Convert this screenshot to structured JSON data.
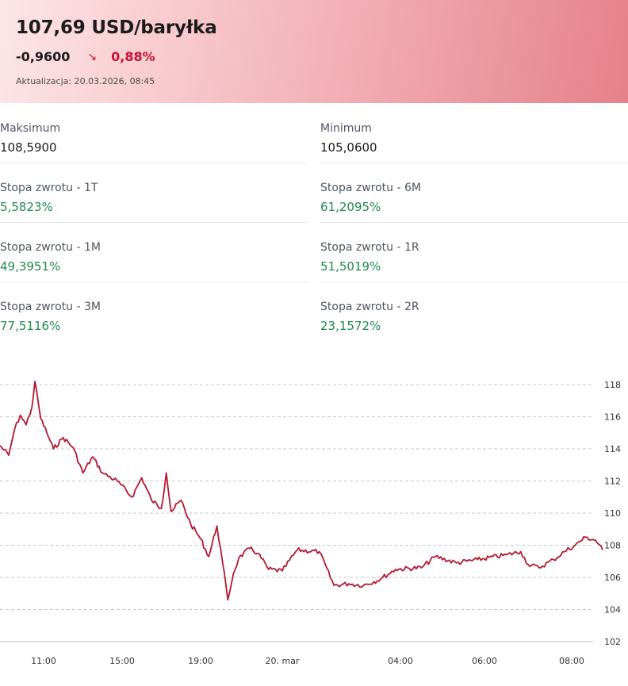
{
  "header": {
    "price": "107,69 USD/baryłka",
    "change_abs": "-0,9600",
    "change_arrow": "↘",
    "change_pct": "0,88%",
    "updated": "Aktualizacja: 20.03.2026, 08:45"
  },
  "stats": [
    {
      "label": "Maksimum",
      "value": "108,5900",
      "tone": "neutral"
    },
    {
      "label": "Minimum",
      "value": "105,0600",
      "tone": "neutral"
    },
    {
      "label": "Stopa zwrotu - 1T",
      "value": "5,5823%",
      "tone": "positive"
    },
    {
      "label": "Stopa zwrotu - 6M",
      "value": "61,2095%",
      "tone": "positive"
    },
    {
      "label": "Stopa zwrotu - 1M",
      "value": "49,3951%",
      "tone": "positive"
    },
    {
      "label": "Stopa zwrotu - 1R",
      "value": "51,5019%",
      "tone": "positive"
    },
    {
      "label": "Stopa zwrotu - 3M",
      "value": "77,5116%",
      "tone": "positive"
    },
    {
      "label": "Stopa zwrotu - 2R",
      "value": "23,1572%",
      "tone": "positive"
    }
  ],
  "colors": {
    "line": "#b5172f",
    "positive": "#1f8a4c",
    "negative": "#c41230"
  },
  "chart_data": {
    "type": "line",
    "title": "",
    "xlabel": "",
    "ylabel": "",
    "ylim": [
      102,
      118
    ],
    "y_ticks": [
      "118",
      "116",
      "114",
      "112",
      "110",
      "108",
      "106",
      "104",
      "102"
    ],
    "x_ticks": [
      "11:00",
      "15:00",
      "19:00",
      "20. mar",
      "04:00",
      "06:00",
      "08:00"
    ],
    "grid": "horizontal-dashed",
    "series": [
      {
        "values": [
          {
            "t": "19 mar 09:45",
            "y": 114.2
          },
          {
            "t": "19 mar 10:00",
            "y": 113.6
          },
          {
            "t": "19 mar 10:10",
            "y": 115.2
          },
          {
            "t": "19 mar 10:20",
            "y": 116.1
          },
          {
            "t": "19 mar 10:30",
            "y": 115.5
          },
          {
            "t": "19 mar 10:40",
            "y": 116.6
          },
          {
            "t": "19 mar 10:45",
            "y": 118.2
          },
          {
            "t": "19 mar 10:55",
            "y": 115.9
          },
          {
            "t": "19 mar 11:10",
            "y": 115.0
          },
          {
            "t": "19 mar 11:30",
            "y": 114.0
          },
          {
            "t": "19 mar 12:00",
            "y": 114.7
          },
          {
            "t": "19 mar 12:30",
            "y": 114.1
          },
          {
            "t": "19 mar 13:00",
            "y": 112.5
          },
          {
            "t": "19 mar 13:30",
            "y": 113.5
          },
          {
            "t": "19 mar 14:00",
            "y": 112.5
          },
          {
            "t": "19 mar 14:45",
            "y": 112.0
          },
          {
            "t": "19 mar 15:30",
            "y": 111.0
          },
          {
            "t": "19 mar 16:00",
            "y": 112.2
          },
          {
            "t": "19 mar 16:30",
            "y": 110.8
          },
          {
            "t": "19 mar 17:00",
            "y": 110.3
          },
          {
            "t": "19 mar 17:15",
            "y": 112.5
          },
          {
            "t": "19 mar 17:30",
            "y": 110.1
          },
          {
            "t": "19 mar 18:00",
            "y": 110.8
          },
          {
            "t": "19 mar 18:30",
            "y": 109.3
          },
          {
            "t": "19 mar 19:00",
            "y": 108.4
          },
          {
            "t": "19 mar 19:30",
            "y": 107.3
          },
          {
            "t": "19 mar 20:00",
            "y": 109.2
          },
          {
            "t": "19 mar 20:20",
            "y": 107.0
          },
          {
            "t": "19 mar 20:40",
            "y": 104.6
          },
          {
            "t": "19 mar 21:00",
            "y": 106.2
          },
          {
            "t": "19 mar 21:20",
            "y": 107.2
          },
          {
            "t": "19 mar 22:00",
            "y": 107.8
          },
          {
            "t": "19 mar 22:30",
            "y": 107.5
          },
          {
            "t": "19 mar 23:10",
            "y": 106.5
          },
          {
            "t": "20 mar 00:00",
            "y": 106.4
          },
          {
            "t": "20 mar 00:30",
            "y": 107.7
          },
          {
            "t": "20 mar 01:15",
            "y": 107.6
          },
          {
            "t": "20 mar 01:45",
            "y": 105.5
          },
          {
            "t": "20 mar 02:15",
            "y": 105.6
          },
          {
            "t": "20 mar 02:45",
            "y": 105.5
          },
          {
            "t": "20 mar 03:20",
            "y": 105.9
          },
          {
            "t": "20 mar 03:50",
            "y": 106.5
          },
          {
            "t": "20 mar 04:30",
            "y": 106.6
          },
          {
            "t": "20 mar 04:50",
            "y": 107.3
          },
          {
            "t": "20 mar 05:20",
            "y": 106.9
          },
          {
            "t": "20 mar 05:50",
            "y": 107.1
          },
          {
            "t": "20 mar 06:30",
            "y": 107.4
          },
          {
            "t": "20 mar 06:50",
            "y": 107.6
          },
          {
            "t": "20 mar 07:00",
            "y": 106.8
          },
          {
            "t": "20 mar 07:15",
            "y": 106.6
          },
          {
            "t": "20 mar 07:35",
            "y": 107.1
          },
          {
            "t": "20 mar 07:50",
            "y": 107.6
          },
          {
            "t": "20 mar 08:05",
            "y": 108.0
          },
          {
            "t": "20 mar 08:20",
            "y": 108.5
          },
          {
            "t": "20 mar 08:35",
            "y": 108.3
          },
          {
            "t": "20 mar 08:45",
            "y": 107.7
          }
        ]
      }
    ]
  }
}
